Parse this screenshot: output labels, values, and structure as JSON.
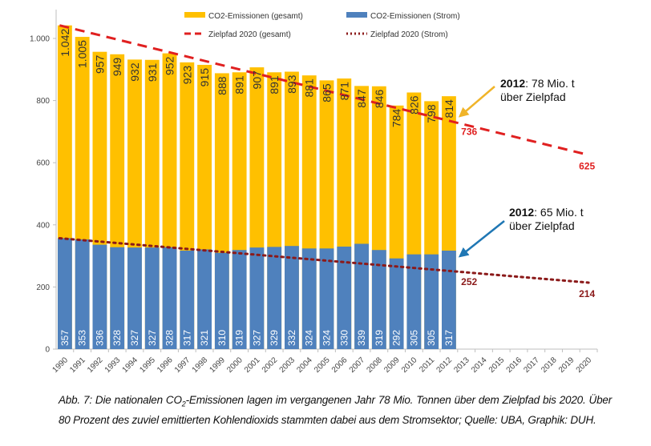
{
  "chart_data": {
    "type": "bar",
    "title": "",
    "xlabel": "",
    "ylabel": "",
    "ylim": [
      0,
      1100
    ],
    "yticks": [
      0,
      200,
      400,
      600,
      800,
      1000
    ],
    "ytick_labels": [
      "0",
      "200",
      "400",
      "600",
      "800",
      "1.000"
    ],
    "grid": false,
    "legend_position": "top",
    "categories": [
      "1990",
      "1991",
      "1992",
      "1993",
      "1994",
      "1995",
      "1996",
      "1997",
      "1998",
      "1999",
      "2000",
      "2001",
      "2002",
      "2003",
      "2004",
      "2005",
      "2006",
      "2007",
      "2008",
      "2009",
      "2010",
      "2011",
      "2012",
      "2013",
      "2014",
      "2015",
      "2016",
      "2017",
      "2018",
      "2019",
      "2020"
    ],
    "series": [
      {
        "name": "CO2-Emissionen (gesamt)",
        "type": "bar",
        "color": "#FFC000",
        "values": [
          1042,
          1005,
          957,
          949,
          932,
          931,
          952,
          923,
          915,
          888,
          891,
          907,
          891,
          893,
          881,
          865,
          871,
          847,
          846,
          784,
          826,
          798,
          814,
          null,
          null,
          null,
          null,
          null,
          null,
          null,
          null
        ],
        "labels": [
          "1.042",
          "1.005",
          "957",
          "949",
          "932",
          "931",
          "952",
          "923",
          "915",
          "888",
          "891",
          "907",
          "891",
          "893",
          "881",
          "865",
          "871",
          "847",
          "846",
          "784",
          "826",
          "798",
          "814"
        ]
      },
      {
        "name": "CO2-Emissionen (Strom)",
        "type": "bar",
        "color": "#4F81BD",
        "values": [
          357,
          353,
          336,
          328,
          327,
          327,
          328,
          317,
          321,
          310,
          319,
          327,
          329,
          332,
          324,
          324,
          330,
          339,
          319,
          292,
          305,
          305,
          317,
          null,
          null,
          null,
          null,
          null,
          null,
          null,
          null
        ],
        "labels": [
          "357",
          "353",
          "336",
          "328",
          "327",
          "327",
          "328",
          "317",
          "321",
          "310",
          "319",
          "327",
          "329",
          "332",
          "324",
          "324",
          "330",
          "339",
          "319",
          "292",
          "305",
          "305",
          "317"
        ]
      },
      {
        "name": "Zielpfad 2020 (gesamt)",
        "type": "line",
        "style": "dashed",
        "color": "#E02020",
        "points": [
          [
            1990,
            1042
          ],
          [
            2012,
            736
          ],
          [
            2020,
            625
          ]
        ],
        "end_labels": [
          {
            "year": 2012,
            "value": "736"
          },
          {
            "year": 2020,
            "value": "625"
          }
        ]
      },
      {
        "name": "Zielpfad 2020 (Strom)",
        "type": "line",
        "style": "dotted",
        "color": "#8B1A1A",
        "points": [
          [
            1990,
            357
          ],
          [
            2012,
            252
          ],
          [
            2020,
            214
          ]
        ],
        "end_labels": [
          {
            "year": 2012,
            "value": "252"
          },
          {
            "year": 2020,
            "value": "214"
          }
        ]
      }
    ],
    "legend": [
      {
        "label": "CO2-Emissionen (gesamt)",
        "kind": "bar",
        "color": "#FFC000"
      },
      {
        "label": "CO2-Emissionen (Strom)",
        "kind": "bar",
        "color": "#4F81BD"
      },
      {
        "label": "Zielpfad 2020 (gesamt)",
        "kind": "dashed",
        "color": "#E02020"
      },
      {
        "label": "Zielpfad 2020 (Strom)",
        "kind": "dotted",
        "color": "#8B1A1A"
      }
    ],
    "annotations": [
      {
        "bold": "2012",
        "text": ": 78 Mio. t",
        "line2": "über Zielpfad",
        "arrow_color": "#F0B429",
        "target_year": 2012,
        "target_value": 736
      },
      {
        "bold": "2012",
        "text": ": 65 Mio. t",
        "line2": "über Zielpfad",
        "arrow_color": "#1F77B4",
        "target_year": 2012,
        "target_value": 317
      }
    ]
  },
  "caption": {
    "prefix": "Abb. 7: Die nationalen CO",
    "subscript": "2",
    "rest": "-Emissionen lagen im vergangenen Jahr 78 Mio. Tonnen über dem Zielpfad bis 2020. Über 80 Prozent des zuviel emittierten Kohlendioxids stammten dabei aus dem Stromsektor; Quelle: UBA, Graphik: DUH."
  }
}
